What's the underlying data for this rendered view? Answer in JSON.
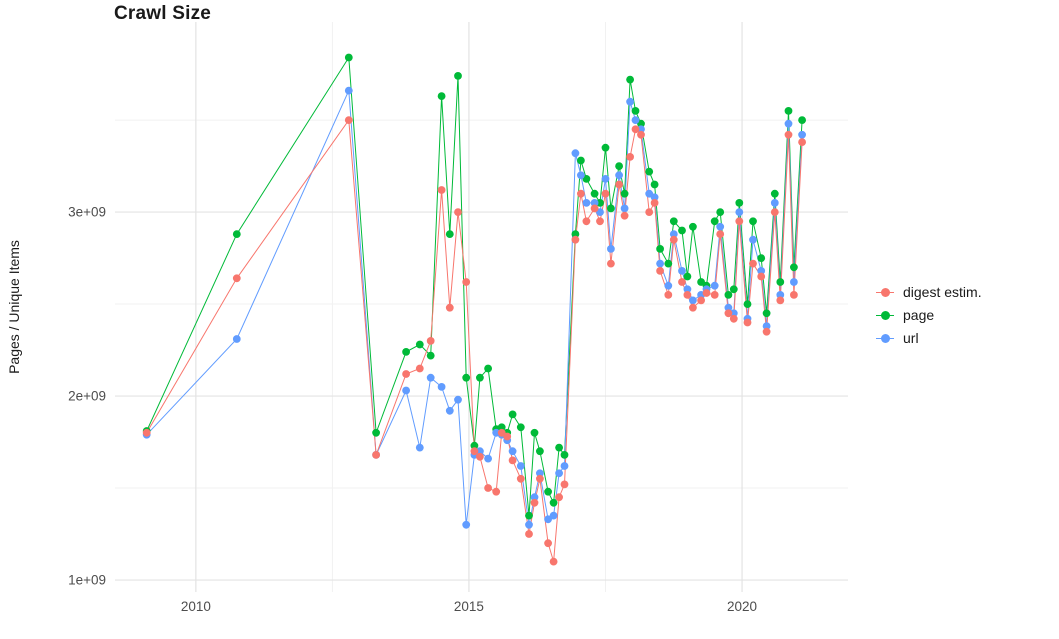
{
  "chart_data": {
    "type": "line",
    "markers": true,
    "title": "Crawl Size",
    "xlabel": "",
    "ylabel": "Pages / Unique Items",
    "units": "values in billions (1e9)",
    "x_ticks": [
      2010,
      2015,
      2020
    ],
    "x_tick_labels": [
      "2010",
      "2015",
      "2020"
    ],
    "x_minor_gridlines": [
      2012.5,
      2017.5
    ],
    "y_ticks": [
      1,
      2,
      3
    ],
    "y_tick_labels": [
      "1e+09",
      "2e+09",
      "3e+09"
    ],
    "y_minor_gridlines": [
      1.5,
      2.5,
      3.5
    ],
    "x_range": [
      2008.52,
      2021.94
    ],
    "y_range": [
      0.935,
      4.033
    ],
    "grid": true,
    "legend_position": "right",
    "colors": {
      "background": "#ffffff",
      "grid_major": "#e3e3e3",
      "grid_minor": "#f1f1f1",
      "axis_text": "#4d4d4d",
      "title_text": "#1a1a1a"
    },
    "draw_order": [
      "page",
      "url",
      "digest"
    ],
    "x": [
      2009.1,
      2010.75,
      2012.8,
      2013.3,
      2013.85,
      2014.1,
      2014.3,
      2014.5,
      2014.65,
      2014.8,
      2014.95,
      2015.1,
      2015.2,
      2015.35,
      2015.5,
      2015.6,
      2015.7,
      2015.8,
      2015.95,
      2016.1,
      2016.2,
      2016.3,
      2016.45,
      2016.55,
      2016.65,
      2016.75,
      2016.95,
      2017.05,
      2017.15,
      2017.3,
      2017.4,
      2017.5,
      2017.6,
      2017.75,
      2017.85,
      2017.95,
      2018.05,
      2018.15,
      2018.3,
      2018.4,
      2018.5,
      2018.65,
      2018.75,
      2018.9,
      2019.0,
      2019.1,
      2019.25,
      2019.35,
      2019.5,
      2019.6,
      2019.75,
      2019.85,
      2019.95,
      2020.1,
      2020.2,
      2020.35,
      2020.45,
      2020.6,
      2020.7,
      2020.85,
      2020.95,
      2021.1
    ],
    "series": [
      {
        "key": "digest",
        "label": "digest estim.",
        "color": "#F8766D",
        "values": [
          1.8,
          2.64,
          3.5,
          1.68,
          2.12,
          2.15,
          2.3,
          3.12,
          2.48,
          3.0,
          2.62,
          1.7,
          1.67,
          1.5,
          1.48,
          1.8,
          1.78,
          1.65,
          1.55,
          1.25,
          1.42,
          1.55,
          1.2,
          1.1,
          1.45,
          1.52,
          2.85,
          3.1,
          2.95,
          3.02,
          2.95,
          3.1,
          2.72,
          3.15,
          2.98,
          3.3,
          3.45,
          3.42,
          3.0,
          3.05,
          2.68,
          2.55,
          2.85,
          2.62,
          2.55,
          2.48,
          2.52,
          2.56,
          2.55,
          2.88,
          2.45,
          2.42,
          2.95,
          2.4,
          2.72,
          2.65,
          2.35,
          3.0,
          2.52,
          3.42,
          2.55,
          3.38
        ]
      },
      {
        "key": "page",
        "label": "page",
        "color": "#00BA38",
        "values": [
          1.81,
          2.88,
          3.84,
          1.8,
          2.24,
          2.28,
          2.22,
          3.63,
          2.88,
          3.74,
          2.1,
          1.73,
          2.1,
          2.15,
          1.82,
          1.83,
          1.8,
          1.9,
          1.83,
          1.35,
          1.8,
          1.7,
          1.48,
          1.42,
          1.72,
          1.68,
          2.88,
          3.28,
          3.18,
          3.1,
          3.05,
          3.35,
          3.02,
          3.25,
          3.1,
          3.72,
          3.55,
          3.48,
          3.22,
          3.15,
          2.8,
          2.72,
          2.95,
          2.9,
          2.65,
          2.92,
          2.62,
          2.6,
          2.95,
          3.0,
          2.55,
          2.58,
          3.05,
          2.5,
          2.95,
          2.75,
          2.45,
          3.1,
          2.62,
          3.55,
          2.7,
          3.5
        ]
      },
      {
        "key": "url",
        "label": "url",
        "color": "#619CFF",
        "values": [
          1.79,
          2.31,
          3.66,
          1.68,
          2.03,
          1.72,
          2.1,
          2.05,
          1.92,
          1.98,
          1.3,
          1.68,
          1.7,
          1.66,
          1.8,
          1.79,
          1.76,
          1.7,
          1.62,
          1.3,
          1.45,
          1.58,
          1.33,
          1.35,
          1.58,
          1.62,
          3.32,
          3.2,
          3.05,
          3.05,
          3.0,
          3.18,
          2.8,
          3.2,
          3.02,
          3.6,
          3.5,
          3.45,
          3.1,
          3.08,
          2.72,
          2.6,
          2.88,
          2.68,
          2.58,
          2.52,
          2.55,
          2.58,
          2.6,
          2.92,
          2.48,
          2.45,
          3.0,
          2.42,
          2.85,
          2.68,
          2.38,
          3.05,
          2.55,
          3.48,
          2.62,
          3.42
        ]
      }
    ]
  }
}
